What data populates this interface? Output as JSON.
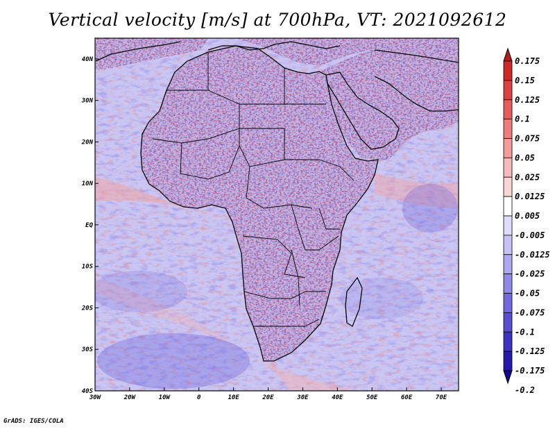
{
  "title": "Vertical velocity [m/s] at 700hPa, VT: 2021092612",
  "footer": "GrADS: IGES/COLA",
  "map": {
    "lat_labels": [
      "40N",
      "30N",
      "20N",
      "10N",
      "EQ",
      "10S",
      "20S",
      "30S",
      "40S"
    ],
    "lon_labels": [
      "30W",
      "20W",
      "10W",
      "0",
      "10E",
      "20E",
      "30E",
      "40E",
      "50E",
      "60E",
      "70E"
    ],
    "lat_range": [
      -40,
      45
    ],
    "lon_range": [
      -30,
      75
    ]
  },
  "colorbar": {
    "labels": [
      "0.175",
      "0.15",
      "0.125",
      "0.1",
      "0.075",
      "0.05",
      "0.025",
      "0.0125",
      "0.005",
      "-0.005",
      "-0.0125",
      "-0.025",
      "-0.05",
      "-0.075",
      "-0.1",
      "-0.125",
      "-0.175",
      "-0.2"
    ],
    "colors": [
      "#b81818",
      "#cc2a2a",
      "#dc4141",
      "#e65c5c",
      "#ee7b7b",
      "#f39b9b",
      "#f7baba",
      "#fad6d6",
      "#ffffff",
      "#dedcfb",
      "#c7c2f6",
      "#aea8f0",
      "#9189e8",
      "#7369de",
      "#584ed2",
      "#3d33c3",
      "#2518ad",
      "#120790"
    ]
  },
  "colors": {
    "ocean_base": "#c9c6f3",
    "land_base": "#c7b9e6",
    "border": "#000000"
  }
}
